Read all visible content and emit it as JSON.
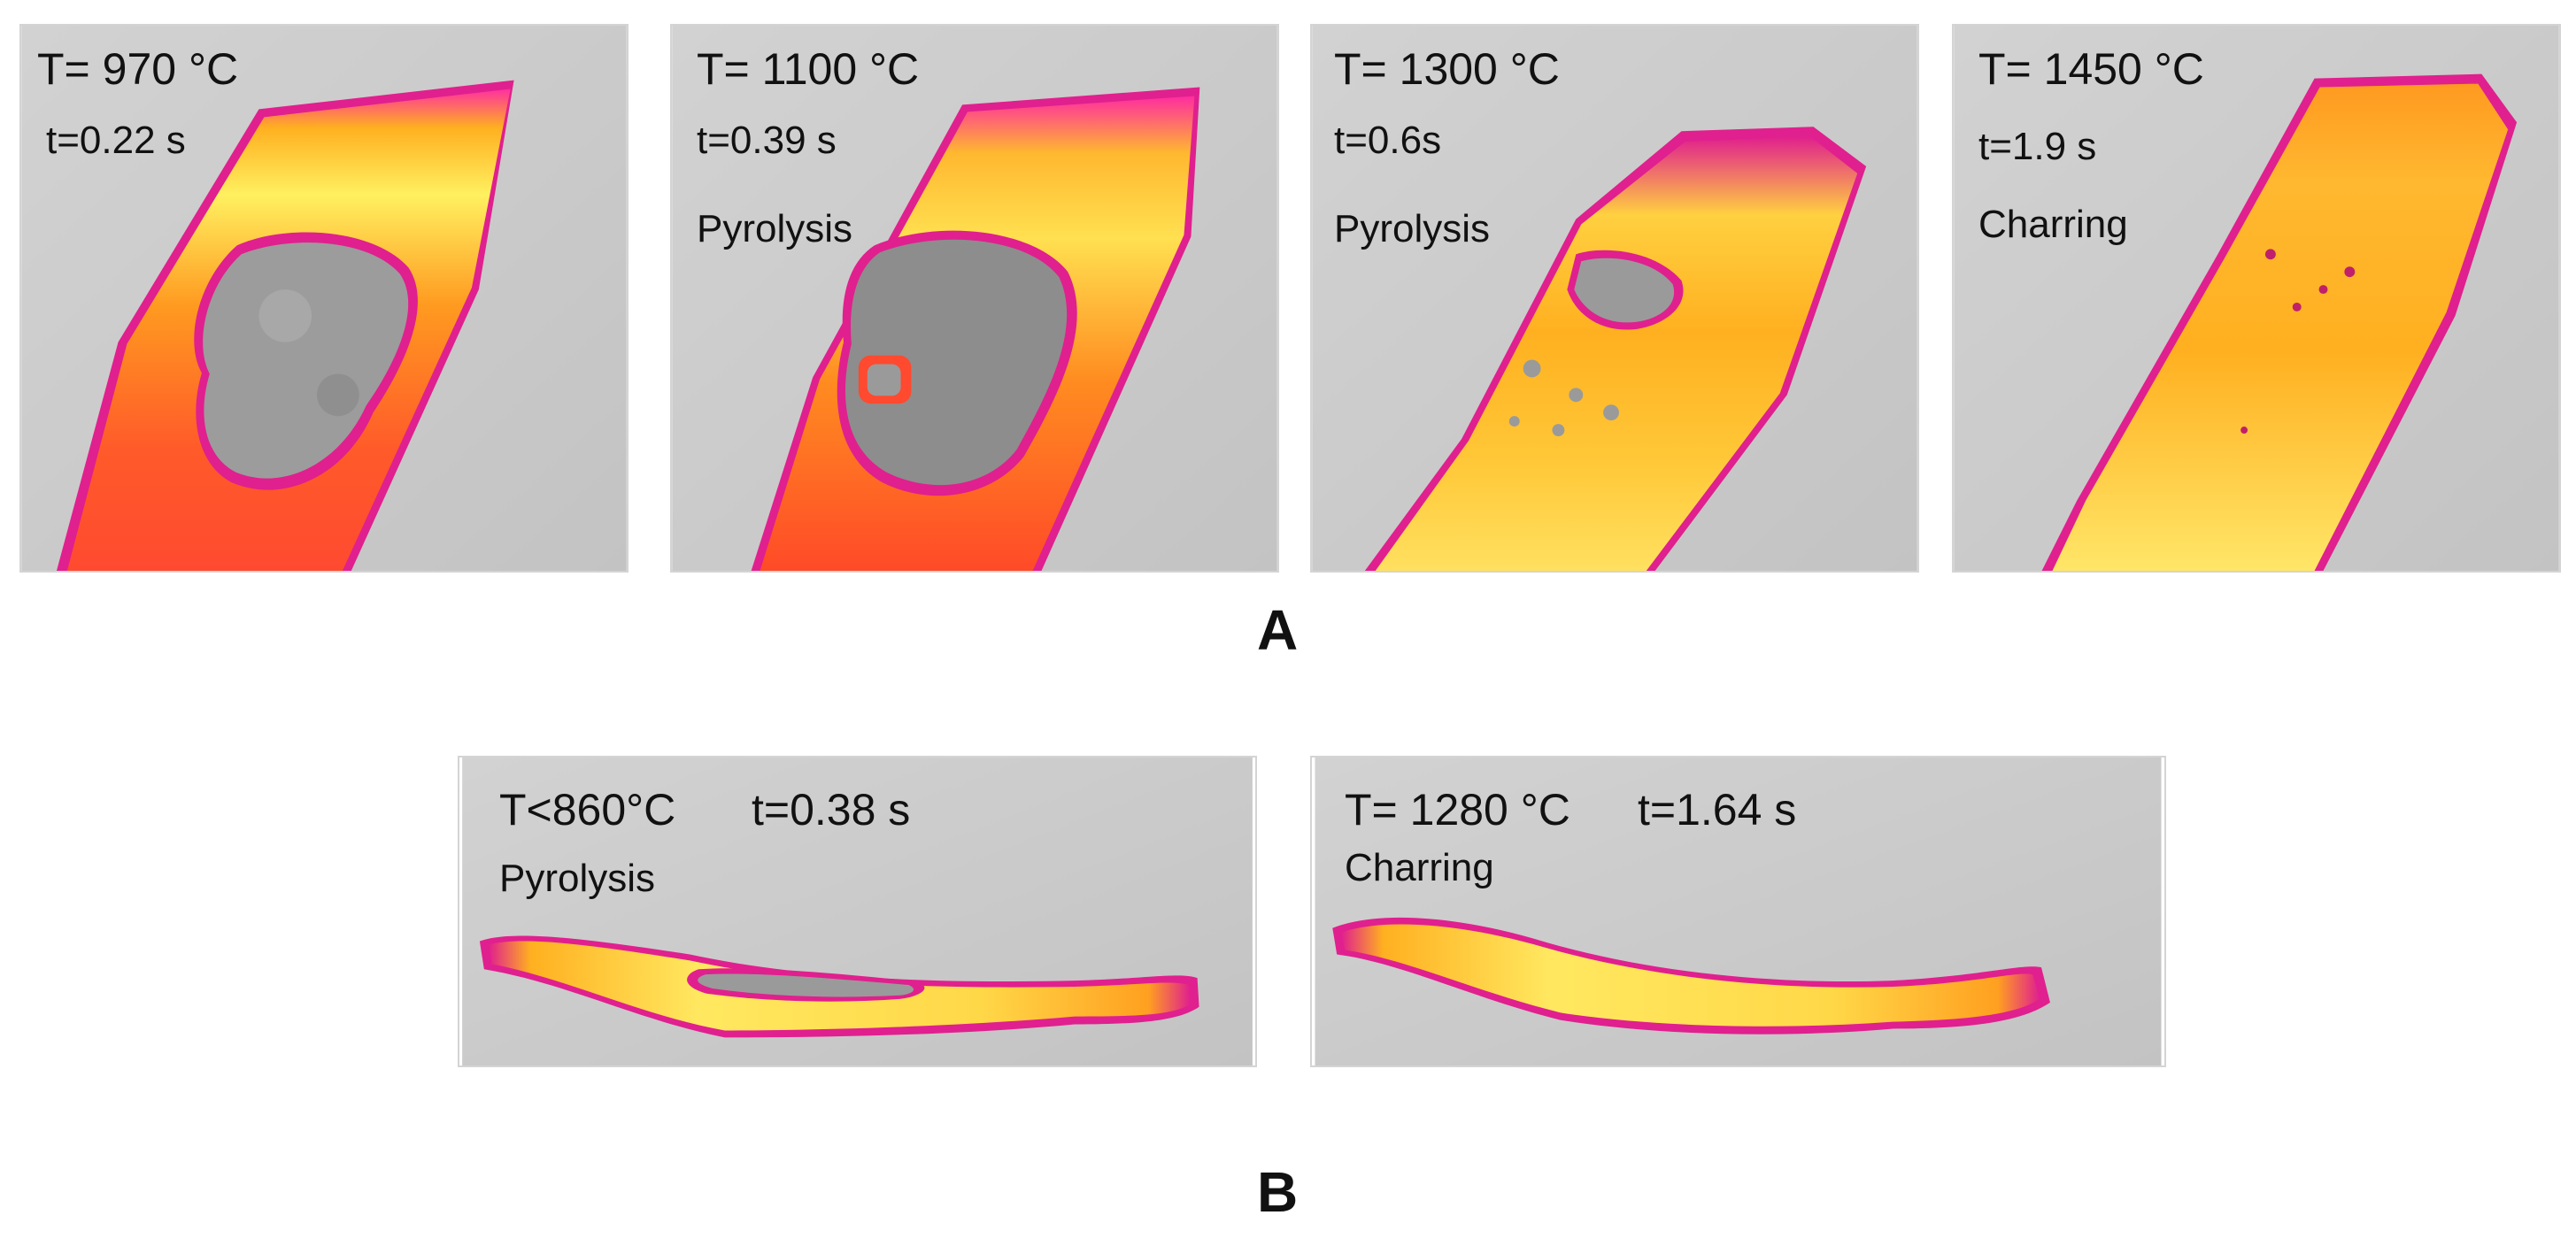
{
  "row_a": {
    "label": "A",
    "panels": [
      {
        "temp": "T= 970 °C",
        "time": "t=0.22 s",
        "stage": ""
      },
      {
        "temp": "T= 1100 °C",
        "time": "t=0.39 s",
        "stage": "Pyrolysis"
      },
      {
        "temp": "T= 1300 °C",
        "time": "t=0.6s",
        "stage": "Pyrolysis"
      },
      {
        "temp": "T= 1450 °C",
        "time": "t=1.9 s",
        "stage": "Charring"
      }
    ]
  },
  "row_b": {
    "label": "B",
    "panels": [
      {
        "temp": "T<860°C",
        "time": "t=0.38 s",
        "stage": "Pyrolysis"
      },
      {
        "temp": "T= 1280 °C",
        "time": "t=1.64 s",
        "stage": "Charring"
      }
    ]
  },
  "colors": {
    "background_gray": "#cbcbcb",
    "hot_yellow": "#ffee55",
    "orange": "#ff8c1a",
    "red_orange": "#ff4a2a",
    "magenta": "#e0208e",
    "unburnt_gray": "#9a9a9a"
  }
}
